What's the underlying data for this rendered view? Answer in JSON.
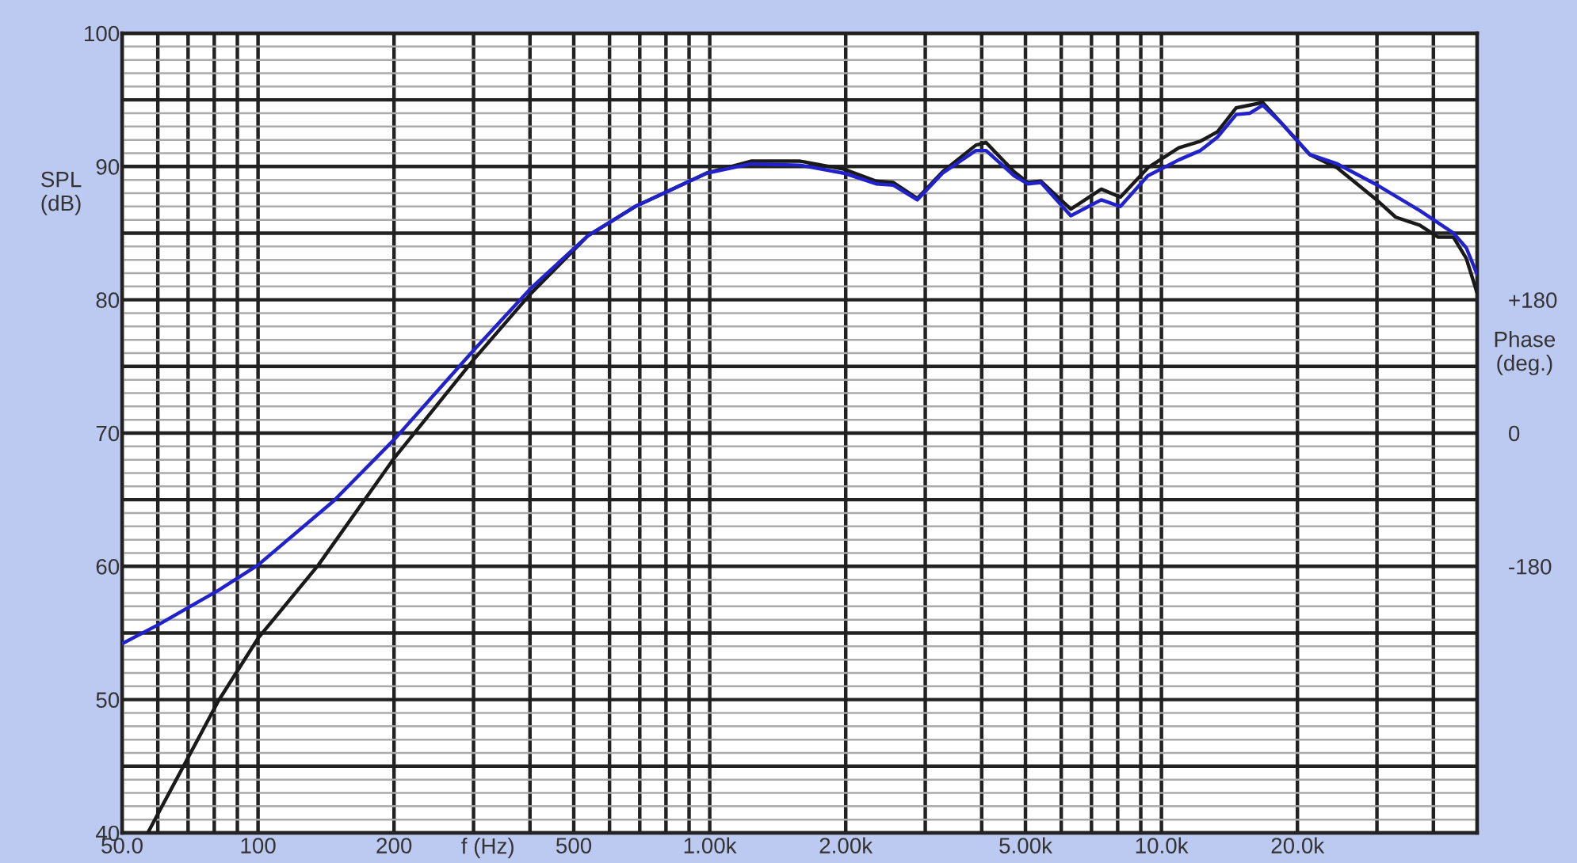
{
  "chart_data": {
    "type": "line",
    "xlabel": "f (Hz)",
    "ylabel": "SPL\n(dB)",
    "y2label": "Phase\n(deg.)",
    "log": "x",
    "grid": true,
    "legend": false,
    "marker": "none",
    "line_style": "solid",
    "xlim": [
      50,
      50000
    ],
    "ylim": [
      40,
      100
    ],
    "y2lim": [
      -540,
      540
    ],
    "xticks": [
      {
        "value": 50,
        "label": "50.0"
      },
      {
        "value": 60,
        "label": null
      },
      {
        "value": 70,
        "label": null
      },
      {
        "value": 80,
        "label": null
      },
      {
        "value": 90,
        "label": null
      },
      100,
      200,
      {
        "value": 300,
        "label": null
      },
      {
        "value": 400,
        "label": null
      },
      500,
      {
        "value": 600,
        "label": null
      },
      {
        "value": 700,
        "label": null
      },
      {
        "value": 800,
        "label": null
      },
      {
        "value": 900,
        "label": null
      },
      {
        "value": 1000,
        "label": "1.00k"
      },
      {
        "value": 2000,
        "label": "2.00k"
      },
      {
        "value": 3000,
        "label": null
      },
      {
        "value": 4000,
        "label": null
      },
      {
        "value": 5000,
        "label": "5.00k"
      },
      {
        "value": 6000,
        "label": null
      },
      {
        "value": 7000,
        "label": null
      },
      {
        "value": 8000,
        "label": null
      },
      {
        "value": 9000,
        "label": null
      },
      {
        "value": 10000,
        "label": "10.0k"
      },
      {
        "value": 20000,
        "label": "20.0k"
      },
      {
        "value": 30000,
        "label": null
      },
      {
        "value": 40000,
        "label": null
      },
      {
        "value": 50000,
        "label": null
      }
    ],
    "yticks": [
      40,
      {
        "value": 45,
        "label": null
      },
      50,
      {
        "value": 55,
        "label": null
      },
      60,
      {
        "value": 65,
        "label": null
      },
      70,
      {
        "value": 75,
        "label": null
      },
      80,
      {
        "value": 85,
        "label": null
      },
      90,
      {
        "value": 95,
        "label": null
      },
      100
    ],
    "y2ticks": [
      {
        "value": 180,
        "label": "+180"
      },
      0,
      -180
    ],
    "series": [
      {
        "color": "#1a1a1a",
        "x": [
          57,
          81.7,
          100,
          136,
          200,
          300,
          400,
          537,
          684,
          984,
          1234,
          1585,
          1980,
          2336,
          2550,
          2880,
          3276,
          3882,
          4090,
          4720,
          5060,
          5410,
          6300,
          7360,
          8110,
          9330,
          10930,
          12200,
          13300,
          14640,
          16760,
          18500,
          21300,
          24500,
          29700,
          33000,
          37300,
          41000,
          44300,
          47300,
          50000
        ],
        "values": [
          40,
          49.9,
          54.6,
          60.1,
          68.1,
          75.5,
          80.4,
          84.8,
          87.0,
          89.5,
          90.4,
          90.4,
          89.8,
          88.9,
          88.8,
          87.6,
          89.6,
          91.6,
          91.8,
          89.6,
          88.8,
          88.9,
          86.8,
          88.3,
          87.7,
          89.9,
          91.4,
          91.9,
          92.6,
          94.4,
          94.8,
          93.2,
          90.9,
          89.9,
          87.6,
          86.2,
          85.6,
          84.7,
          84.7,
          83.1,
          80.5
        ]
      },
      {
        "color": "#2222cc",
        "x": [
          50,
          60,
          81.7,
          100,
          147,
          200,
          300,
          400,
          537,
          684,
          984,
          1234,
          1585,
          1980,
          2336,
          2550,
          2880,
          3276,
          3882,
          4090,
          4720,
          5060,
          5410,
          6300,
          7360,
          8110,
          9330,
          10930,
          12200,
          13300,
          14640,
          15700,
          16760,
          18500,
          21300,
          24500,
          29700,
          37300,
          44300,
          47300,
          50000
        ],
        "values": [
          54.2,
          55.6,
          58.2,
          60.1,
          64.9,
          69.5,
          76.2,
          80.8,
          84.8,
          87.0,
          89.5,
          90.2,
          90.1,
          89.5,
          88.7,
          88.6,
          87.5,
          89.5,
          91.2,
          91.2,
          89.3,
          88.7,
          88.8,
          86.3,
          87.5,
          87.0,
          89.3,
          90.5,
          91.2,
          92.2,
          93.9,
          94.0,
          94.6,
          93.2,
          90.9,
          90.2,
          88.7,
          86.7,
          85.0,
          83.9,
          81.9
        ]
      }
    ]
  }
}
